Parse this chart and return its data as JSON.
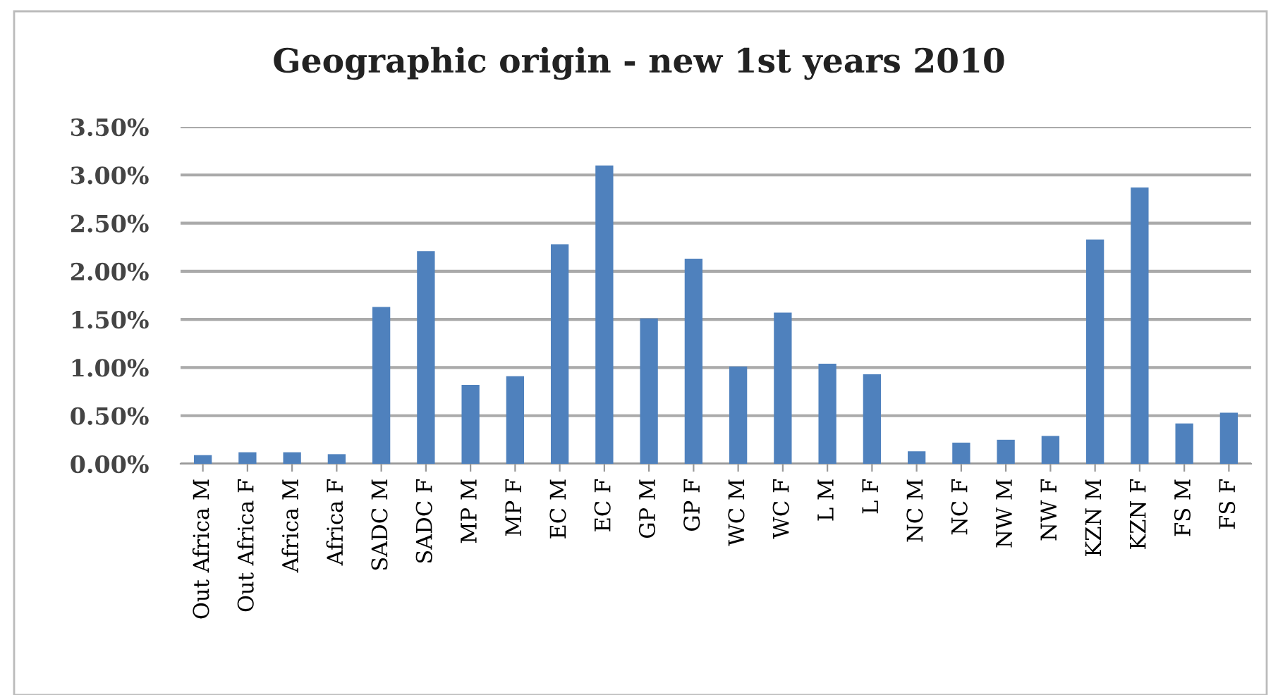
{
  "chart_data": {
    "type": "bar",
    "title": "Geographic origin - new 1st years 2010",
    "categories": [
      "Out Africa M",
      "Out Africa F",
      "Africa M",
      "Africa F",
      "SADC M",
      "SADC F",
      "MP M",
      "MP F",
      "EC M",
      "EC F",
      "GP M",
      "GP F",
      "WC M",
      "WC F",
      "L M",
      "L F",
      "NC M",
      "NC F",
      "NW M",
      "NW F",
      "KZN M",
      "KZN F",
      "FS M",
      "FS F"
    ],
    "values": [
      0.09,
      0.12,
      0.12,
      0.1,
      1.63,
      2.21,
      0.82,
      0.91,
      2.28,
      3.1,
      1.51,
      2.13,
      1.01,
      1.57,
      1.04,
      0.93,
      0.13,
      0.22,
      0.25,
      0.29,
      2.33,
      2.87,
      0.42,
      0.53
    ],
    "color": "#4f81bd",
    "ylim": [
      0,
      3.5
    ],
    "yticks": [
      {
        "value": 0,
        "label": "0.00%"
      },
      {
        "value": 0.5,
        "label": "0.50%"
      },
      {
        "value": 1,
        "label": "1.00%"
      },
      {
        "value": 1.5,
        "label": "1.50%"
      },
      {
        "value": 2,
        "label": "2.00%"
      },
      {
        "value": 2.5,
        "label": "2.50%"
      },
      {
        "value": 3,
        "label": "3.00%"
      },
      {
        "value": 3.5,
        "label": "3.50%"
      }
    ],
    "grid": "y",
    "legend": false
  }
}
